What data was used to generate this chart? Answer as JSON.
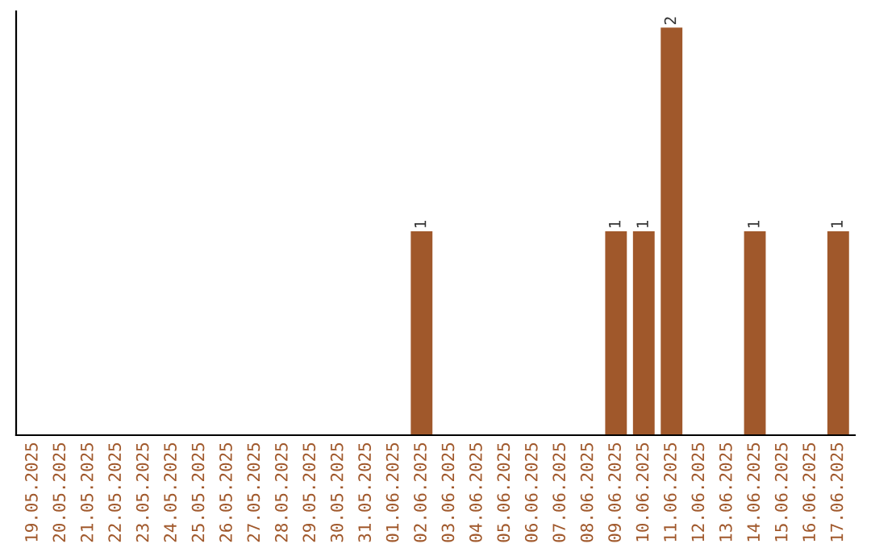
{
  "chart_data": {
    "type": "bar",
    "categories": [
      "19.05.2025",
      "20.05.2025",
      "21.05.2025",
      "22.05.2025",
      "23.05.2025",
      "24.05.2025",
      "25.05.2025",
      "26.05.2025",
      "27.05.2025",
      "28.05.2025",
      "29.05.2025",
      "30.05.2025",
      "31.05.2025",
      "01.06.2025",
      "02.06.2025",
      "03.06.2025",
      "04.06.2025",
      "05.06.2025",
      "06.06.2025",
      "07.06.2025",
      "08.06.2025",
      "09.06.2025",
      "10.06.2025",
      "11.06.2025",
      "12.06.2025",
      "13.06.2025",
      "14.06.2025",
      "15.06.2025",
      "16.06.2025",
      "17.06.2025"
    ],
    "values": [
      null,
      null,
      null,
      null,
      null,
      null,
      null,
      null,
      null,
      null,
      null,
      null,
      null,
      null,
      1,
      null,
      null,
      null,
      null,
      null,
      null,
      1,
      1,
      2,
      null,
      null,
      1,
      null,
      null,
      1
    ],
    "value_labels": [
      null,
      null,
      null,
      null,
      null,
      null,
      null,
      null,
      null,
      null,
      null,
      null,
      null,
      null,
      "1",
      null,
      null,
      null,
      null,
      null,
      null,
      "1",
      "1",
      "2",
      null,
      null,
      "1",
      null,
      null,
      "1"
    ],
    "color": "#a0582b",
    "tick_labels": "x",
    "grid": false,
    "legend": false
  }
}
